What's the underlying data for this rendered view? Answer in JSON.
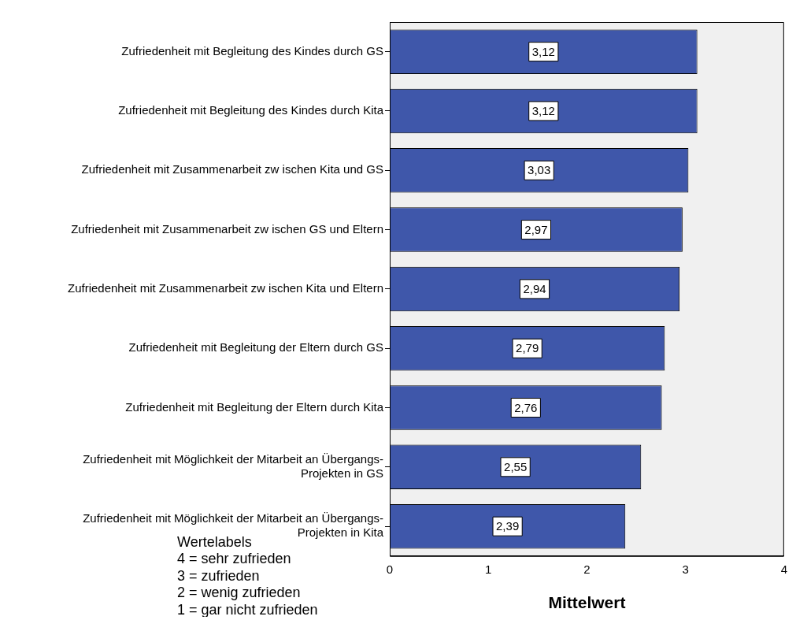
{
  "chart_data": {
    "type": "bar",
    "orientation": "horizontal",
    "xlabel": "Mittelwert",
    "categories": [
      "Zufriedenheit mit Begleitung des Kindes durch GS",
      "Zufriedenheit mit Begleitung des Kindes durch Kita",
      "Zufriedenheit mit Zusammenarbeit zw ischen Kita und GS",
      "Zufriedenheit mit Zusammenarbeit zw ischen GS und Eltern",
      "Zufriedenheit mit Zusammenarbeit zw ischen Kita und Eltern",
      "Zufriedenheit mit Begleitung der Eltern durch GS",
      "Zufriedenheit mit Begleitung der Eltern durch Kita",
      "Zufriedenheit mit Möglichkeit der Mitarbeit an Übergangs-\nProjekten in GS",
      "Zufriedenheit mit Möglichkeit der Mitarbeit an Übergangs-\nProjekten in Kita"
    ],
    "values": [
      3.12,
      3.12,
      3.03,
      2.97,
      2.94,
      2.79,
      2.76,
      2.55,
      2.39
    ],
    "value_labels": [
      "3,12",
      "3,12",
      "3,03",
      "2,97",
      "2,94",
      "2,79",
      "2,76",
      "2,55",
      "2,39"
    ],
    "color": "#3f57aa",
    "xlim": [
      0,
      4
    ],
    "xticks": [
      0,
      1,
      2,
      3,
      4
    ],
    "annotations": [
      "Wertelabels",
      "4 = sehr zufrieden",
      "3 = zufrieden",
      "2 = wenig zufrieden",
      "1 = gar nicht zufrieden"
    ]
  }
}
